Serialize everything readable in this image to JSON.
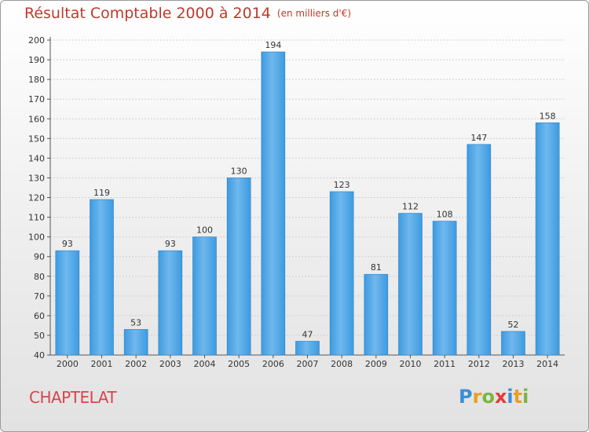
{
  "title": "Résultat Comptable 2000 à 2014",
  "title_unit": "(en milliers d'€)",
  "commune": "CHAPTELAT",
  "logo": {
    "letters": [
      "P",
      "r",
      "o",
      "x",
      "i",
      "t",
      "i"
    ],
    "colors": [
      "#3a8fd6",
      "#e8a020",
      "#7cb342",
      "#e53935",
      "#3a8fd6",
      "#e8a020",
      "#7cb342"
    ]
  },
  "colors": {
    "bar": "#3d9be0",
    "bar_light": "#6fb8ee",
    "title": "#c0392b",
    "commune": "#d9434f"
  },
  "chart_data": {
    "type": "bar",
    "title": "Résultat Comptable 2000 à 2014",
    "ylabel": "",
    "xlabel": "",
    "ylim": [
      40,
      200
    ],
    "yticks": [
      40,
      50,
      60,
      70,
      80,
      90,
      100,
      110,
      120,
      130,
      140,
      150,
      160,
      170,
      180,
      190,
      200
    ],
    "grid": true,
    "categories": [
      "2000",
      "2001",
      "2002",
      "2003",
      "2004",
      "2005",
      "2006",
      "2007",
      "2008",
      "2009",
      "2010",
      "2011",
      "2012",
      "2013",
      "2014"
    ],
    "values": [
      93,
      119,
      53,
      93,
      100,
      130,
      194,
      47,
      123,
      81,
      112,
      108,
      147,
      52,
      158
    ]
  }
}
